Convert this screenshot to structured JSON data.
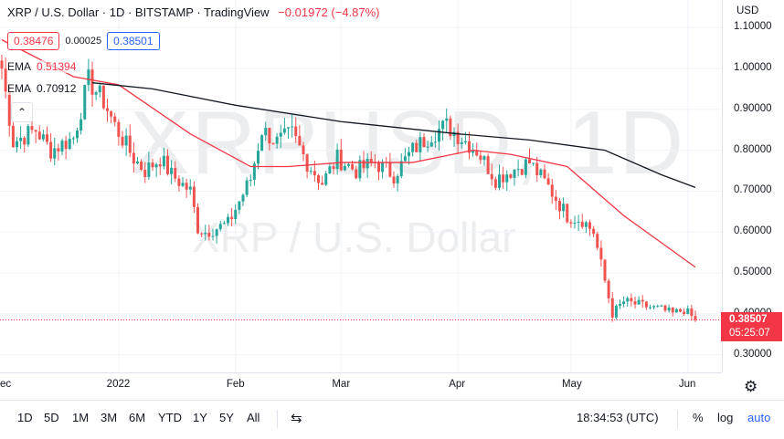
{
  "header": {
    "title": "XRP / U.S. Dollar · 1D · BITSTAMP · TradingView",
    "change": "−0.01972 (−4.87%)"
  },
  "quote": {
    "bid": "0.38476",
    "spread": "0.00025",
    "ask": "0.38501"
  },
  "indicators": [
    {
      "label": "EMA",
      "value": "0.51394",
      "color": "#f23645"
    },
    {
      "label": "EMA",
      "value": "0.70912",
      "color": "#131722"
    }
  ],
  "watermark": {
    "symbol": "XRPUSD, 1D",
    "name": "XRP / U.S. Dollar"
  },
  "yaxis": {
    "currency": "USD",
    "ticks": [
      "1.10000",
      "1.00000",
      "0.90000",
      "0.80000",
      "0.70000",
      "0.60000",
      "0.50000",
      "0.40000",
      "0.30000"
    ]
  },
  "price_label": {
    "price": "0.38507",
    "countdown": "05:25:07",
    "color": "#f23645"
  },
  "xaxis": {
    "ticks": [
      "ec",
      "2022",
      "Feb",
      "Mar",
      "Apr",
      "May",
      "Jun"
    ]
  },
  "bottom_bar": {
    "ranges": [
      "1D",
      "5D",
      "1M",
      "3M",
      "6M",
      "YTD",
      "1Y",
      "5Y",
      "All"
    ],
    "clock": "18:34:53 (UTC)",
    "percent": "%",
    "log": "log",
    "auto": "auto"
  },
  "chart_data": {
    "type": "candlestick",
    "title": "XRP / U.S. Dollar · 1D · BITSTAMP",
    "ylim": [
      0.25,
      1.13
    ],
    "up_color": "#26a69a",
    "down_color": "#ef5350",
    "close_anchors": [
      [
        "2021-12-01",
        1.0
      ],
      [
        "2021-12-04",
        0.82
      ],
      [
        "2021-12-10",
        0.85
      ],
      [
        "2021-12-14",
        0.8
      ],
      [
        "2021-12-20",
        0.83
      ],
      [
        "2021-12-24",
        0.97
      ],
      [
        "2021-12-28",
        0.92
      ],
      [
        "2021-12-31",
        0.86
      ],
      [
        "2022-01-05",
        0.78
      ],
      [
        "2022-01-08",
        0.75
      ],
      [
        "2022-01-12",
        0.78
      ],
      [
        "2022-01-15",
        0.74
      ],
      [
        "2022-01-20",
        0.7
      ],
      [
        "2022-01-22",
        0.61
      ],
      [
        "2022-01-24",
        0.6
      ],
      [
        "2022-01-30",
        0.62
      ],
      [
        "2022-02-05",
        0.73
      ],
      [
        "2022-02-08",
        0.85
      ],
      [
        "2022-02-12",
        0.82
      ],
      [
        "2022-02-16",
        0.84
      ],
      [
        "2022-02-20",
        0.77
      ],
      [
        "2022-02-24",
        0.72
      ],
      [
        "2022-02-28",
        0.78
      ],
      [
        "2022-03-05",
        0.75
      ],
      [
        "2022-03-10",
        0.77
      ],
      [
        "2022-03-15",
        0.74
      ],
      [
        "2022-03-20",
        0.8
      ],
      [
        "2022-03-25",
        0.84
      ],
      [
        "2022-03-29",
        0.86
      ],
      [
        "2022-04-02",
        0.83
      ],
      [
        "2022-04-06",
        0.8
      ],
      [
        "2022-04-11",
        0.73
      ],
      [
        "2022-04-15",
        0.75
      ],
      [
        "2022-04-20",
        0.77
      ],
      [
        "2022-04-25",
        0.71
      ],
      [
        "2022-04-30",
        0.64
      ],
      [
        "2022-05-04",
        0.63
      ],
      [
        "2022-05-07",
        0.6
      ],
      [
        "2022-05-09",
        0.52
      ],
      [
        "2022-05-12",
        0.4
      ],
      [
        "2022-05-15",
        0.43
      ],
      [
        "2022-05-20",
        0.42
      ],
      [
        "2022-05-25",
        0.41
      ],
      [
        "2022-05-28",
        0.4
      ],
      [
        "2022-05-31",
        0.41
      ],
      [
        "2022-06-03",
        0.385
      ]
    ],
    "ema50_anchors": [
      [
        "2021-12-01",
        1.07
      ],
      [
        "2021-12-20",
        0.98
      ],
      [
        "2022-01-01",
        0.96
      ],
      [
        "2022-01-20",
        0.84
      ],
      [
        "2022-02-05",
        0.76
      ],
      [
        "2022-02-15",
        0.76
      ],
      [
        "2022-03-01",
        0.77
      ],
      [
        "2022-03-20",
        0.77
      ],
      [
        "2022-04-05",
        0.8
      ],
      [
        "2022-04-15",
        0.79
      ],
      [
        "2022-04-30",
        0.76
      ],
      [
        "2022-05-15",
        0.64
      ],
      [
        "2022-06-03",
        0.514
      ]
    ],
    "ema200_anchors": [
      [
        "2021-12-25",
        0.965
      ],
      [
        "2022-01-10",
        0.95
      ],
      [
        "2022-02-01",
        0.91
      ],
      [
        "2022-03-01",
        0.87
      ],
      [
        "2022-04-01",
        0.84
      ],
      [
        "2022-04-20",
        0.825
      ],
      [
        "2022-05-10",
        0.8
      ],
      [
        "2022-05-25",
        0.74
      ],
      [
        "2022-06-03",
        0.709
      ]
    ],
    "last_close": 0.38507,
    "last_change": -0.01972,
    "last_change_pct": -4.87,
    "countdown": "05:25:07"
  }
}
